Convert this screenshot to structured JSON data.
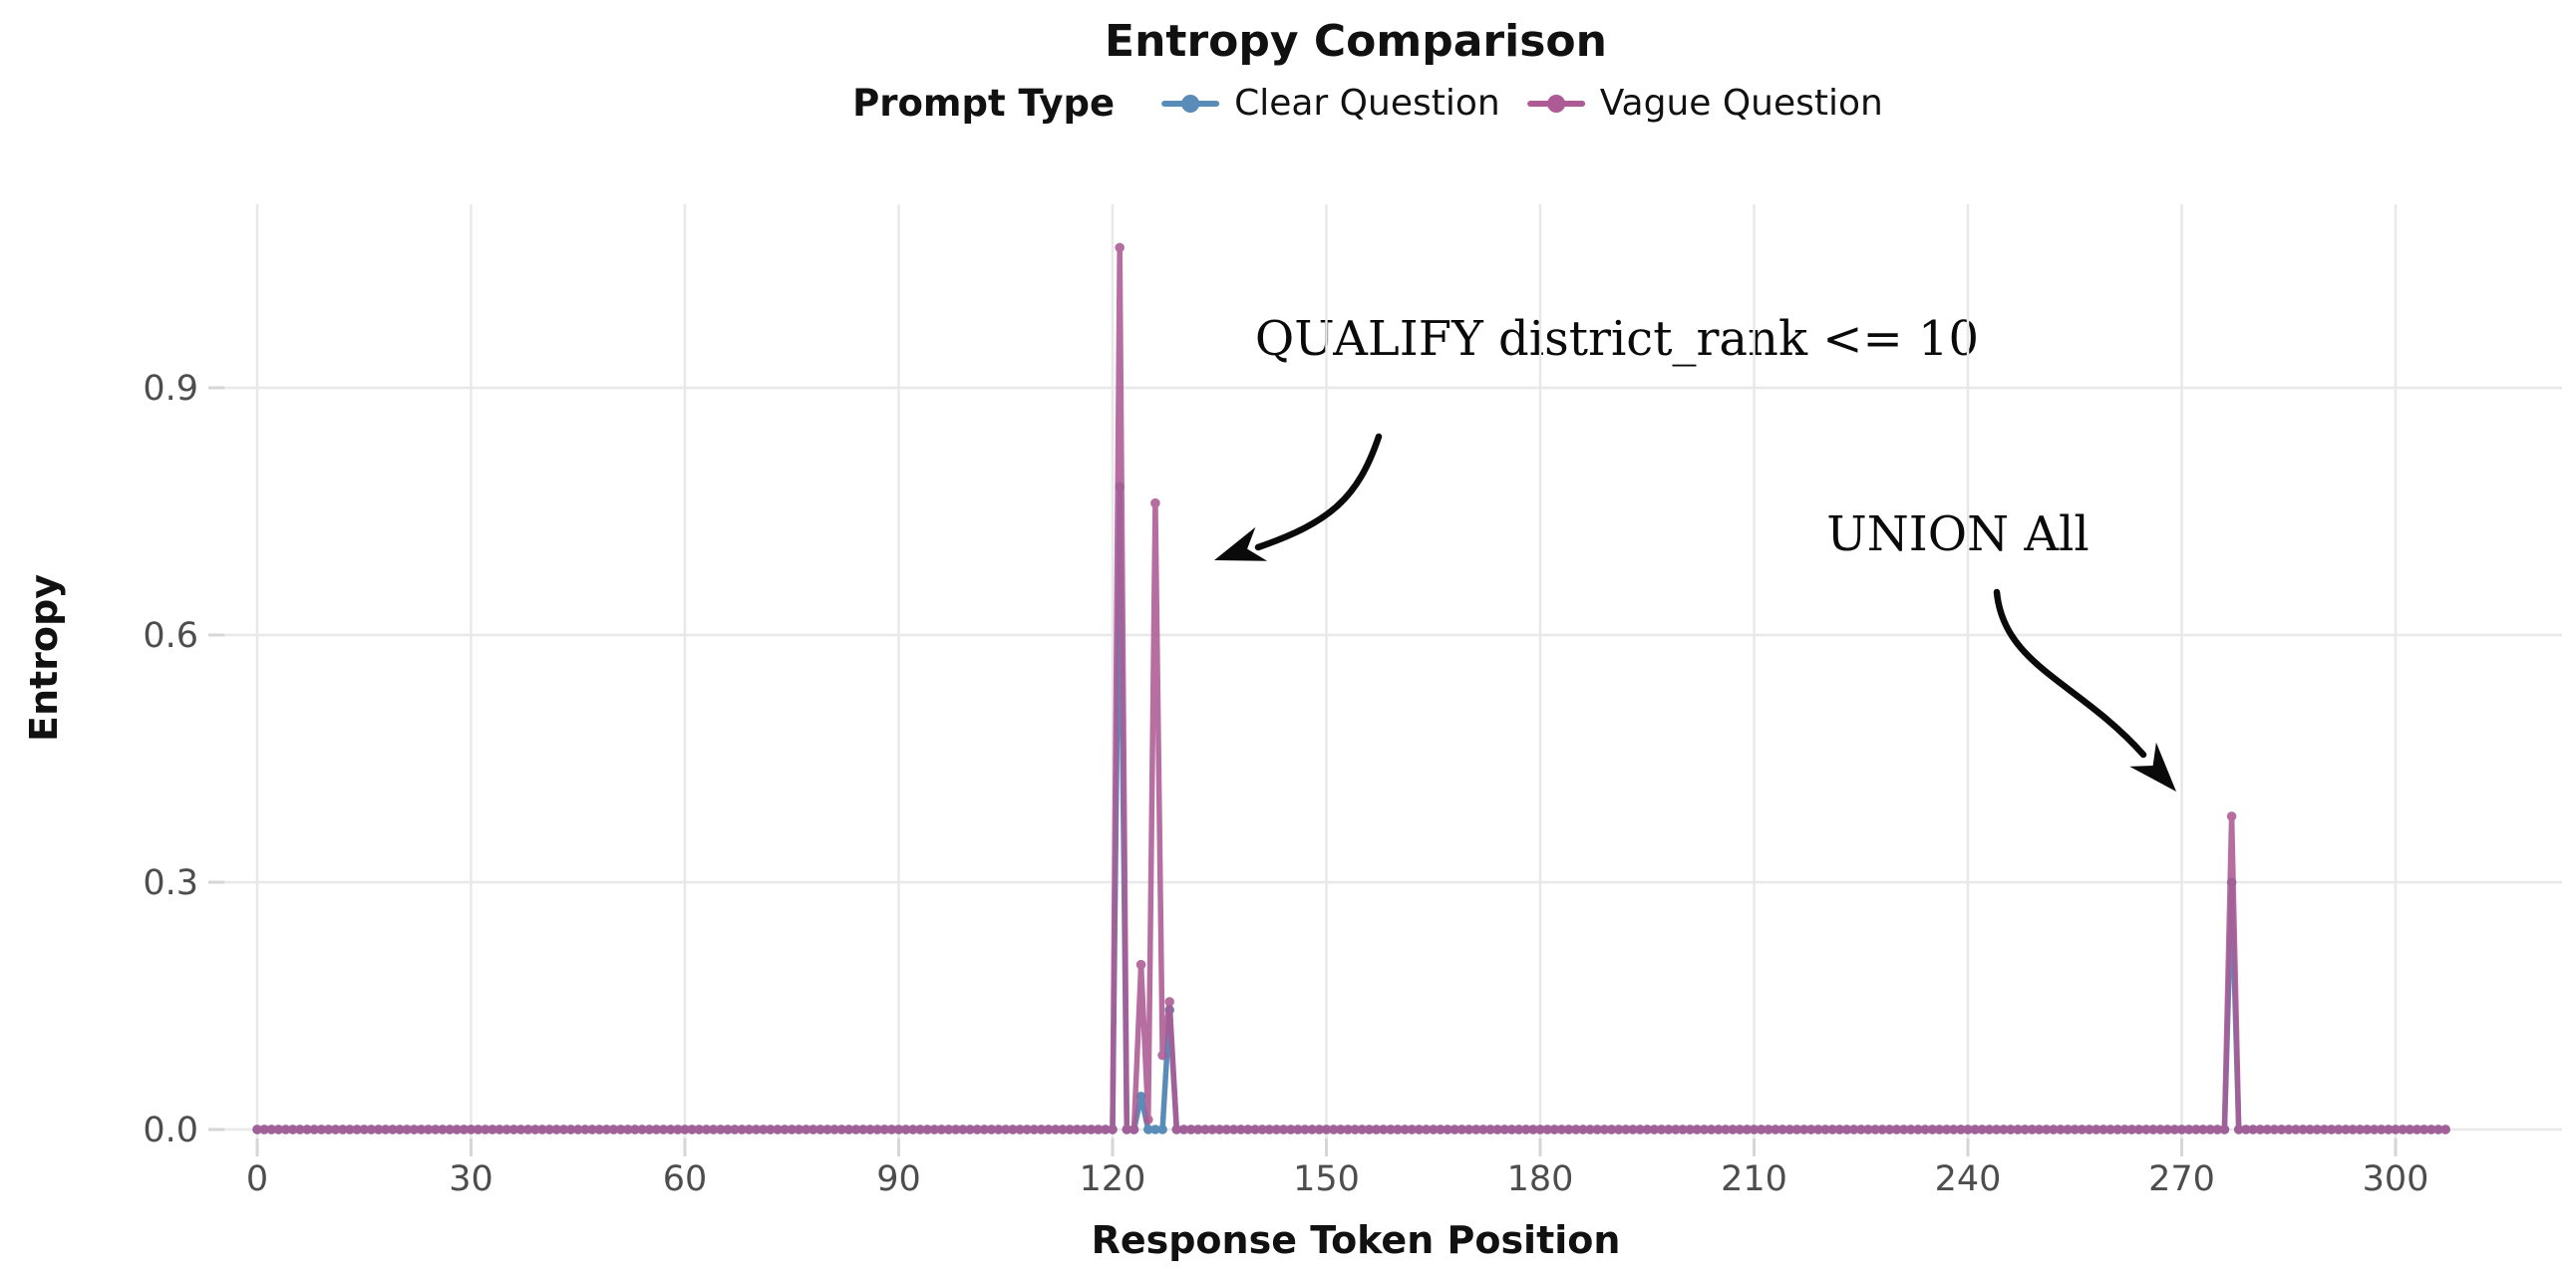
{
  "title": "Entropy Comparison",
  "legend": {
    "title": "Prompt Type",
    "position": "top",
    "items": [
      {
        "label": "Clear Question",
        "color": "#5a8cba"
      },
      {
        "label": "Vague Question",
        "color": "#ad5b95"
      }
    ]
  },
  "axes": {
    "x_label": "Response Token Position",
    "y_label": "Entropy"
  },
  "annotations": [
    {
      "text": "QUALIFY district_rank <= 10",
      "points_to_token": 124
    },
    {
      "text": "UNION All",
      "points_to_token": 277
    }
  ],
  "chart_data": {
    "type": "line",
    "title": "Entropy Comparison",
    "xlabel": "Response Token Position",
    "ylabel": "Entropy",
    "grid": true,
    "x_min": 0,
    "x_max": 307,
    "xlim": [
      -5,
      322
    ],
    "ylim": [
      0,
      1.13
    ],
    "x_ticks": [
      {
        "label": "0",
        "v": 0
      },
      {
        "label": "30",
        "v": 30
      },
      {
        "label": "60",
        "v": 60
      },
      {
        "label": "90",
        "v": 90
      },
      {
        "label": "120",
        "v": 120
      },
      {
        "label": "150",
        "v": 150
      },
      {
        "label": "180",
        "v": 180
      },
      {
        "label": "210",
        "v": 210
      },
      {
        "label": "240",
        "v": 240
      },
      {
        "label": "270",
        "v": 270
      },
      {
        "label": "300",
        "v": 300
      }
    ],
    "y_ticks": [
      {
        "label": "0.0",
        "v": 0.0
      },
      {
        "label": "0.3",
        "v": 0.3
      },
      {
        "label": "0.6",
        "v": 0.6
      },
      {
        "label": "0.9",
        "v": 0.9
      }
    ],
    "series": [
      {
        "name": "Clear Question",
        "color": "#5a8cba",
        "default_value": 0.0,
        "spikes": {
          "121": 0.78,
          "124": 0.04,
          "128": 0.145,
          "277": 0.3
        }
      },
      {
        "name": "Vague Question",
        "color": "#ad5b95",
        "default_value": 0.0,
        "spikes": {
          "121": 1.07,
          "124": 0.2,
          "125": 0.012,
          "126": 0.76,
          "127": 0.09,
          "128": 0.155,
          "277": 0.38
        }
      }
    ],
    "colors": {
      "gridline": "#e8e8e8",
      "tick_mark": "#d6d6d6",
      "tick_label": "#4d4d4d",
      "annotation_arrow": "#0a0a0a",
      "background": "#ffffff"
    }
  }
}
